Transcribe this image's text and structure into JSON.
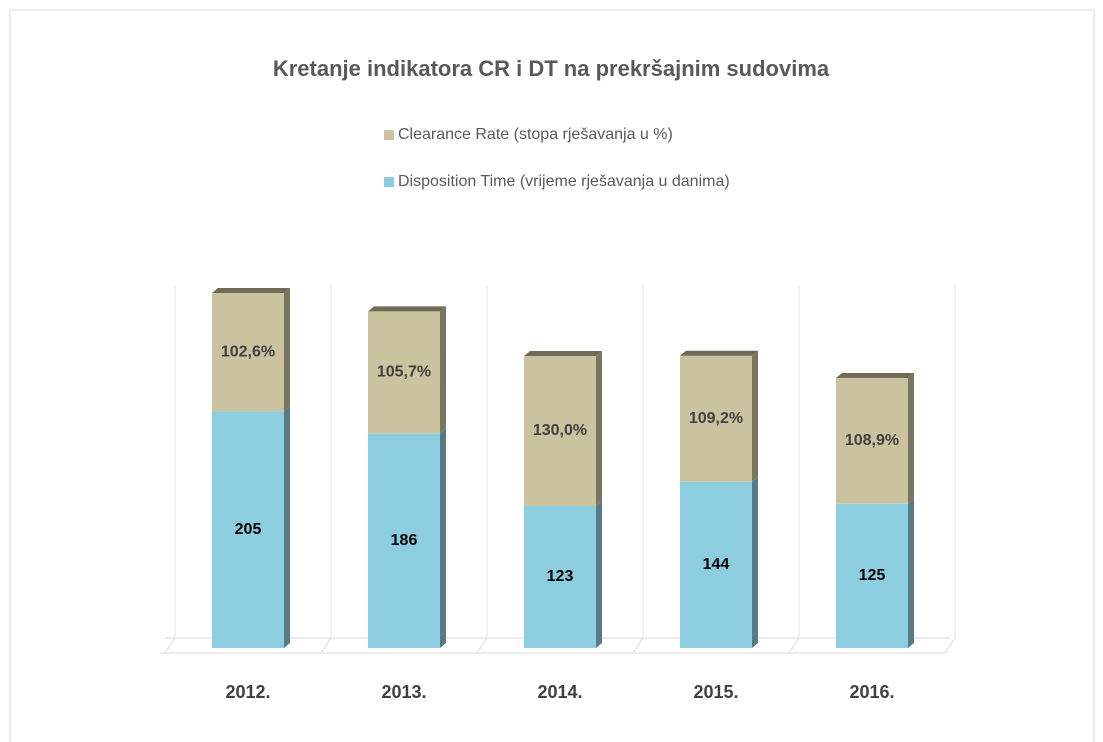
{
  "chart_data": {
    "type": "stacked_bar",
    "title": "Kretanje indikatora CR i DT na prekršajnim sudovima",
    "categories": [
      "2012.",
      "2013.",
      "2014.",
      "2015.",
      "2016."
    ],
    "series": [
      {
        "name": "Disposition Time (vrijeme rješavanja u danima)",
        "color": "#8dcde0",
        "values": [
          205,
          186,
          123,
          144,
          125
        ]
      },
      {
        "name": "Clearance Rate (stopa rješavanja u %)",
        "color": "#cbc39f",
        "values": [
          102.6,
          105.7,
          130.0,
          109.2,
          108.9
        ],
        "value_labels": [
          "102,6%",
          "105,7%",
          "130,0%",
          "109,2%",
          "108,9%"
        ]
      }
    ],
    "legend": "top"
  }
}
